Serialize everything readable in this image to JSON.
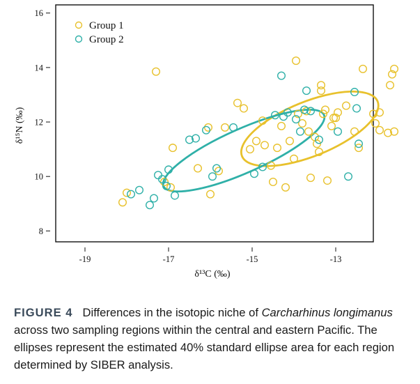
{
  "chart_data": {
    "type": "scatter",
    "xlabel": "δ¹³C (‰)",
    "ylabel": "δ¹⁵N (‰)",
    "xlim": [
      -19.7,
      -12.1
    ],
    "ylim": [
      7.6,
      16.3
    ],
    "xticks": [
      -19,
      -17,
      -15,
      -13
    ],
    "yticks": [
      8,
      10,
      12,
      14,
      16
    ],
    "legend_position": "top-left",
    "grid": false,
    "series": [
      {
        "name": "Group 1",
        "color": "#e8c12c",
        "points": [
          [
            -18.1,
            9.05
          ],
          [
            -18.0,
            9.4
          ],
          [
            -17.3,
            13.85
          ],
          [
            -17.1,
            9.8
          ],
          [
            -16.95,
            9.6
          ],
          [
            -16.9,
            11.05
          ],
          [
            -16.3,
            10.3
          ],
          [
            -16.05,
            11.8
          ],
          [
            -16.0,
            9.35
          ],
          [
            -15.8,
            10.2
          ],
          [
            -15.65,
            11.8
          ],
          [
            -15.35,
            12.7
          ],
          [
            -15.2,
            12.5
          ],
          [
            -15.05,
            11.0
          ],
          [
            -14.9,
            11.3
          ],
          [
            -14.75,
            12.05
          ],
          [
            -14.7,
            11.15
          ],
          [
            -14.55,
            10.4
          ],
          [
            -14.5,
            9.8
          ],
          [
            -14.4,
            11.05
          ],
          [
            -14.2,
            9.6
          ],
          [
            -14.1,
            11.3
          ],
          [
            -14.0,
            10.65
          ],
          [
            -13.95,
            14.25
          ],
          [
            -13.9,
            12.3
          ],
          [
            -13.8,
            11.95
          ],
          [
            -13.7,
            12.4
          ],
          [
            -13.65,
            11.65
          ],
          [
            -13.6,
            9.95
          ],
          [
            -13.5,
            11.45
          ],
          [
            -13.45,
            11.2
          ],
          [
            -13.4,
            10.9
          ],
          [
            -13.35,
            13.15
          ],
          [
            -13.35,
            13.35
          ],
          [
            -13.3,
            12.3
          ],
          [
            -13.25,
            12.45
          ],
          [
            -13.2,
            9.85
          ],
          [
            -13.05,
            12.15
          ],
          [
            -12.95,
            12.35
          ],
          [
            -12.75,
            12.6
          ],
          [
            -12.55,
            11.65
          ],
          [
            -12.45,
            11.05
          ],
          [
            -12.35,
            13.95
          ],
          [
            -12.1,
            12.3
          ],
          [
            -12.05,
            11.95
          ],
          [
            -11.95,
            11.7
          ],
          [
            -11.95,
            12.35
          ],
          [
            -11.75,
            11.6
          ],
          [
            -11.7,
            13.35
          ],
          [
            -11.65,
            13.75
          ],
          [
            -11.6,
            13.95
          ],
          [
            -11.6,
            11.65
          ],
          [
            -13.0,
            12.15
          ],
          [
            -13.1,
            11.85
          ],
          [
            -14.3,
            11.85
          ]
        ]
      },
      {
        "name": "Group 2",
        "color": "#2fb0a8",
        "points": [
          [
            -17.9,
            9.35
          ],
          [
            -17.7,
            9.5
          ],
          [
            -17.45,
            8.95
          ],
          [
            -17.35,
            9.2
          ],
          [
            -17.25,
            10.05
          ],
          [
            -17.15,
            9.9
          ],
          [
            -17.05,
            9.65
          ],
          [
            -17.0,
            10.25
          ],
          [
            -16.85,
            9.3
          ],
          [
            -16.5,
            11.35
          ],
          [
            -16.35,
            11.4
          ],
          [
            -16.1,
            11.7
          ],
          [
            -15.95,
            10.0
          ],
          [
            -15.85,
            10.3
          ],
          [
            -15.45,
            11.8
          ],
          [
            -14.95,
            10.1
          ],
          [
            -14.75,
            10.35
          ],
          [
            -14.45,
            12.25
          ],
          [
            -14.3,
            13.7
          ],
          [
            -14.25,
            12.2
          ],
          [
            -14.15,
            12.35
          ],
          [
            -13.95,
            12.1
          ],
          [
            -13.85,
            11.65
          ],
          [
            -13.7,
            13.15
          ],
          [
            -13.6,
            12.4
          ],
          [
            -13.4,
            11.35
          ],
          [
            -12.95,
            11.65
          ],
          [
            -12.7,
            10.0
          ],
          [
            -12.55,
            13.1
          ],
          [
            -12.5,
            12.5
          ],
          [
            -12.45,
            11.2
          ],
          [
            -13.75,
            12.45
          ]
        ]
      }
    ],
    "ellipses": [
      {
        "series": "Group 1",
        "center": [
          -13.62,
          11.75
        ],
        "rx_data": 1.75,
        "ry_data": 1.0,
        "angle_deg": -22
      },
      {
        "series": "Group 2",
        "center": [
          -15.2,
          10.95
        ],
        "rx_data": 2.1,
        "ry_data": 0.8,
        "angle_deg": -24
      }
    ]
  },
  "caption": {
    "figure_label": "FIGURE 4",
    "text_before": "Differences in the isotopic niche of ",
    "species_italic": "Carcharhinus longimanus",
    "text_after": " across two sampling regions within the central and eastern Pacific. The ellipses represent the estimated 40% standard ellipse area for each region determined by SIBER analysis."
  }
}
